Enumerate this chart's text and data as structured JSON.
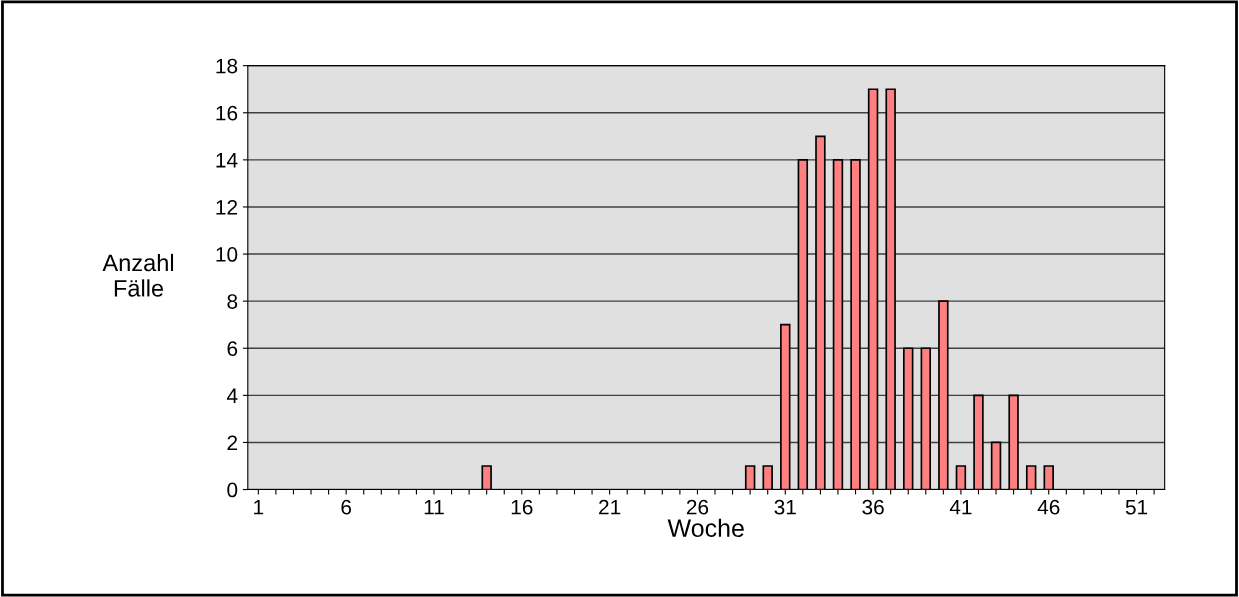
{
  "chart_data": {
    "type": "bar",
    "categories": [
      "1",
      null,
      null,
      null,
      null,
      "6",
      null,
      null,
      null,
      null,
      "11",
      null,
      null,
      null,
      null,
      "16",
      null,
      null,
      null,
      null,
      "21",
      null,
      null,
      null,
      null,
      "26",
      null,
      null,
      null,
      null,
      "31",
      null,
      null,
      null,
      null,
      "36",
      null,
      null,
      null,
      null,
      "41",
      null,
      null,
      null,
      null,
      "46",
      null,
      null,
      null,
      null,
      "51",
      null
    ],
    "values": [
      0,
      0,
      0,
      0,
      0,
      0,
      0,
      0,
      0,
      0,
      0,
      0,
      0,
      1,
      0,
      0,
      0,
      0,
      0,
      0,
      0,
      0,
      0,
      0,
      0,
      0,
      0,
      0,
      1,
      1,
      7,
      14,
      15,
      14,
      14,
      17,
      17,
      6,
      6,
      8,
      1,
      4,
      2,
      4,
      1,
      1,
      0,
      0,
      0,
      0,
      0,
      0
    ],
    "color": "#ff8080",
    "xlabel": "Woche",
    "ylabel": "Anzahl\nFälle",
    "ylim": [
      0,
      18
    ],
    "yticks": [
      0,
      2,
      4,
      6,
      8,
      10,
      12,
      14,
      16,
      18
    ],
    "grid": "y"
  }
}
